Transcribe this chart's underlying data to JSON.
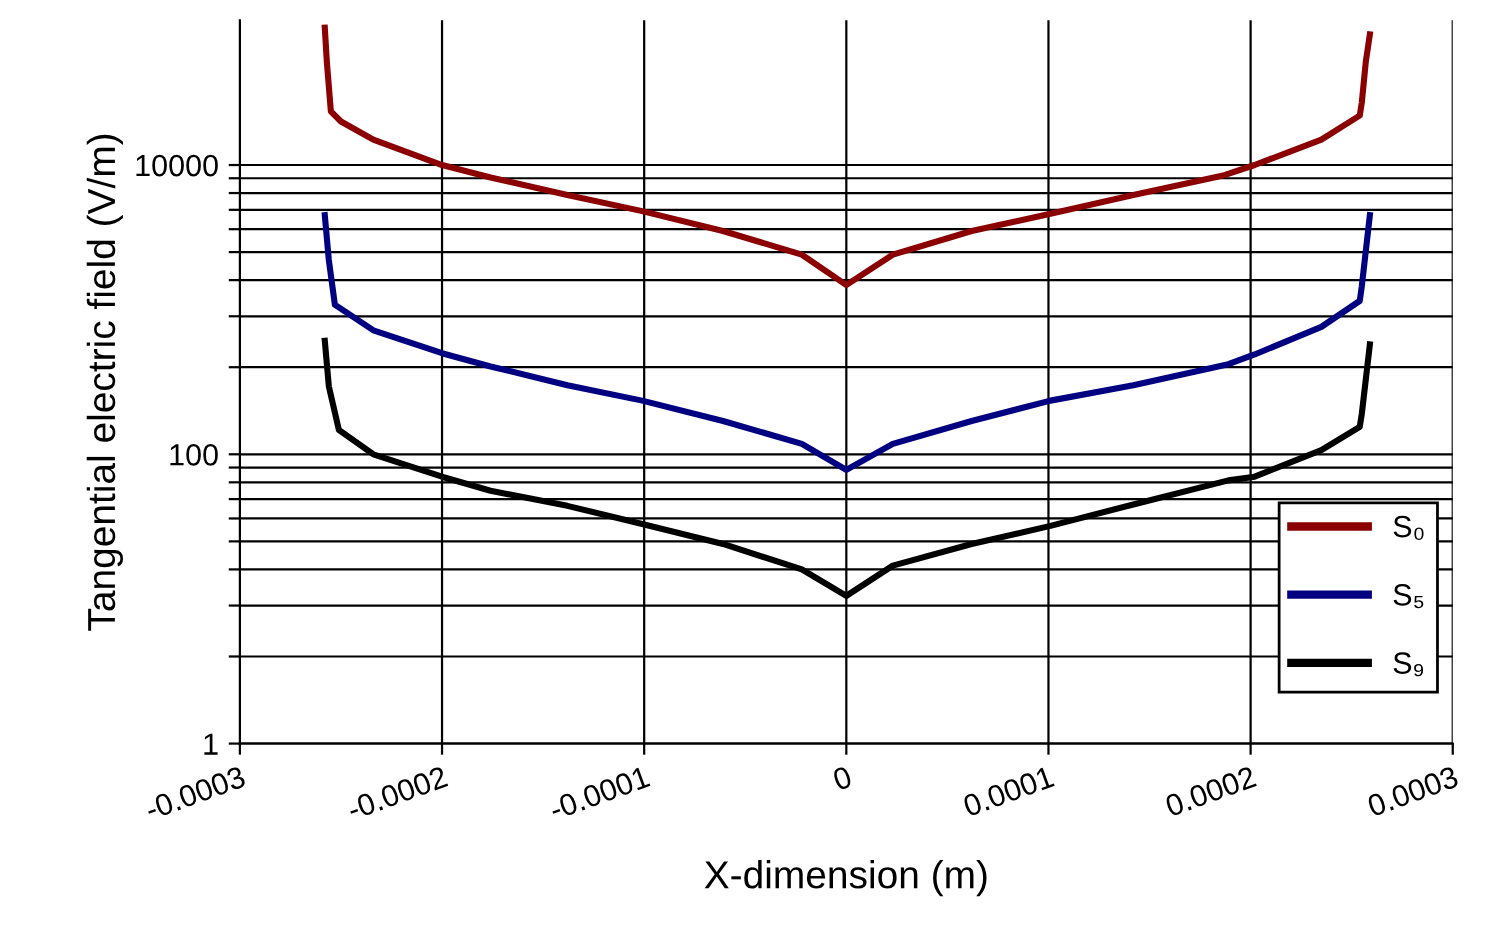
{
  "chart_data": {
    "type": "line",
    "xlabel": "X-dimension (m)",
    "ylabel": "Tangential electric field (V/m)",
    "log": "y",
    "grid": true,
    "legend": "right",
    "line_style": "solid",
    "marker": "none",
    "xlim": [
      -0.0003,
      0.0003
    ],
    "xticks": [
      -0.0003,
      -0.0002,
      -0.0001,
      0,
      0.0001,
      0.0002,
      0.0003
    ],
    "ylim": [
      1,
      100000
    ],
    "yticks": [
      1,
      {
        "value": 4,
        "label": null
      },
      {
        "value": 9,
        "label": null
      },
      {
        "value": 16,
        "label": null
      },
      {
        "value": 25,
        "label": null
      },
      {
        "value": 36,
        "label": null
      },
      {
        "value": 49,
        "label": null
      },
      {
        "value": 64,
        "label": null
      },
      {
        "value": 81,
        "label": null
      },
      100,
      {
        "value": 400,
        "label": null
      },
      {
        "value": 900,
        "label": null
      },
      {
        "value": 1600,
        "label": null
      },
      {
        "value": 2500,
        "label": null
      },
      {
        "value": 3600,
        "label": null
      },
      {
        "value": 4900,
        "label": null
      },
      {
        "value": 6400,
        "label": null
      },
      {
        "value": 8100,
        "label": null
      },
      10000
    ],
    "series": [
      {
        "name": "S₀",
        "color": "#8b0000",
        "x": [
          -0.000258,
          -0.000257,
          -0.000255,
          -0.00025,
          -0.000234,
          -0.0002,
          -0.000176,
          -0.000138,
          -0.000101,
          -6.1e-05,
          -2.2e-05,
          0,
          2.3e-05,
          6.2e-05,
          0.000101,
          0.000142,
          0.000187,
          0.000202,
          0.000235,
          0.000254,
          0.000255,
          0.000257,
          0.000259
        ],
        "values": [
          89000,
          52000,
          23500,
          20000,
          15000,
          10000,
          8200,
          6200,
          4800,
          3500,
          2400,
          1480,
          2400,
          3500,
          4600,
          6200,
          8500,
          10000,
          15000,
          22000,
          27000,
          52000,
          80000
        ]
      },
      {
        "name": "S₅",
        "color": "#000080",
        "x": [
          -0.000258,
          -0.000256,
          -0.000253,
          -0.000234,
          -0.0002,
          -0.000176,
          -0.000138,
          -0.000101,
          -6.1e-05,
          -2.2e-05,
          0,
          2.3e-05,
          6.2e-05,
          0.000101,
          0.000142,
          0.000189,
          0.000202,
          0.000235,
          0.000254,
          0.000255,
          0.000259
        ],
        "values": [
          4500,
          2200,
          1080,
          720,
          500,
          405,
          300,
          235,
          170,
          118,
          78,
          118,
          170,
          235,
          300,
          420,
          490,
          760,
          1150,
          1450,
          4500
        ]
      },
      {
        "name": "S₉",
        "color": "#000000",
        "x": [
          -0.000258,
          -0.000256,
          -0.000251,
          -0.000234,
          -0.0002,
          -0.000176,
          -0.000138,
          -0.000101,
          -6.1e-05,
          -2.2e-05,
          0,
          2.3e-05,
          6.2e-05,
          0.000101,
          0.000142,
          0.000189,
          0.000202,
          0.000235,
          0.000254,
          0.000255,
          0.000259
        ],
        "values": [
          610,
          295,
          147,
          100,
          70,
          56,
          44,
          33,
          24,
          16,
          10.5,
          17,
          24,
          32,
          45,
          66,
          70,
          107,
          155,
          190,
          575
        ]
      }
    ]
  }
}
